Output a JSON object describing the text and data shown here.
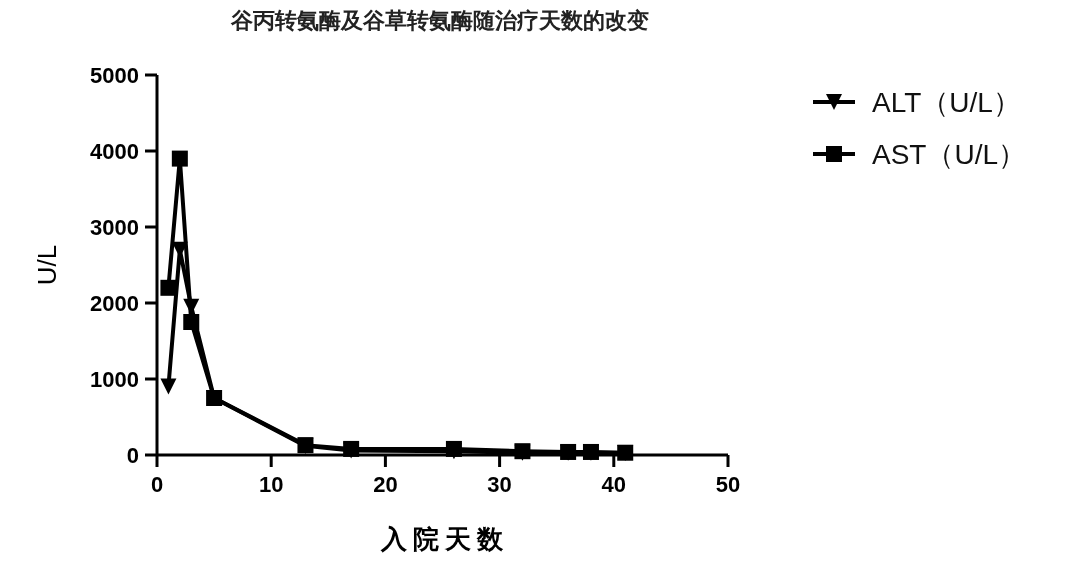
{
  "chart_data": {
    "type": "line",
    "title": "谷丙转氨酶及谷草转氨酶随治疗天数的改变",
    "xlabel": "入院天数",
    "ylabel": "U/L",
    "xlim": [
      0,
      50
    ],
    "xticks": [
      0,
      10,
      20,
      30,
      40,
      50
    ],
    "ylim": [
      0,
      5000
    ],
    "yticks": [
      0,
      1000,
      2000,
      3000,
      4000,
      5000
    ],
    "grid": false,
    "legend": "right",
    "line_style": "solid",
    "series": [
      {
        "name": "ALT（U/L）",
        "color": "#000000",
        "marker": "triangle",
        "x": [
          1,
          2,
          3,
          5,
          13,
          17,
          26,
          32,
          36,
          38,
          41
        ],
        "values": [
          900,
          2700,
          1950,
          750,
          120,
          60,
          50,
          30,
          30,
          30,
          25
        ]
      },
      {
        "name": "AST（U/L）",
        "color": "#000000",
        "marker": "square",
        "x": [
          1,
          2,
          3,
          5,
          13,
          17,
          26,
          32,
          36,
          38,
          41
        ],
        "values": [
          2200,
          3900,
          1750,
          750,
          130,
          80,
          80,
          50,
          40,
          40,
          30
        ]
      }
    ]
  }
}
